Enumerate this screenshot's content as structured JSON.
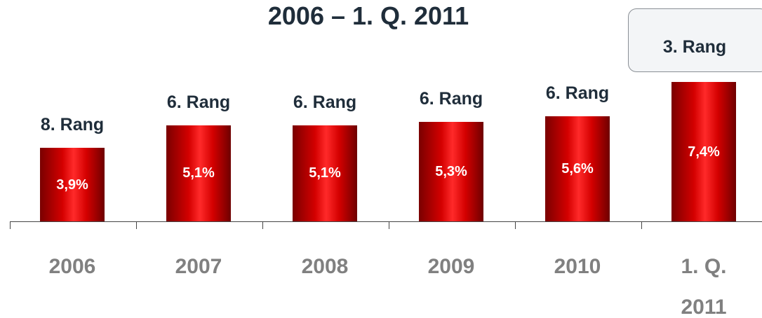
{
  "chart_data": {
    "type": "bar",
    "title": "2006 – 1. Q. 2011",
    "categories": [
      "2006",
      "2007",
      "2008",
      "2009",
      "2010",
      "1. Q. 2011"
    ],
    "values": [
      3.9,
      5.1,
      5.1,
      5.3,
      5.6,
      7.4
    ],
    "value_labels": [
      "3,9%",
      "5,1%",
      "5,1%",
      "5,3%",
      "5,6%",
      "7,4%"
    ],
    "annotations": [
      "8. Rang",
      "6. Rang",
      "6. Rang",
      "6. Rang",
      "6. Rang",
      "3. Rang"
    ],
    "color": "#d40000",
    "ylim": [
      0,
      8
    ]
  }
}
